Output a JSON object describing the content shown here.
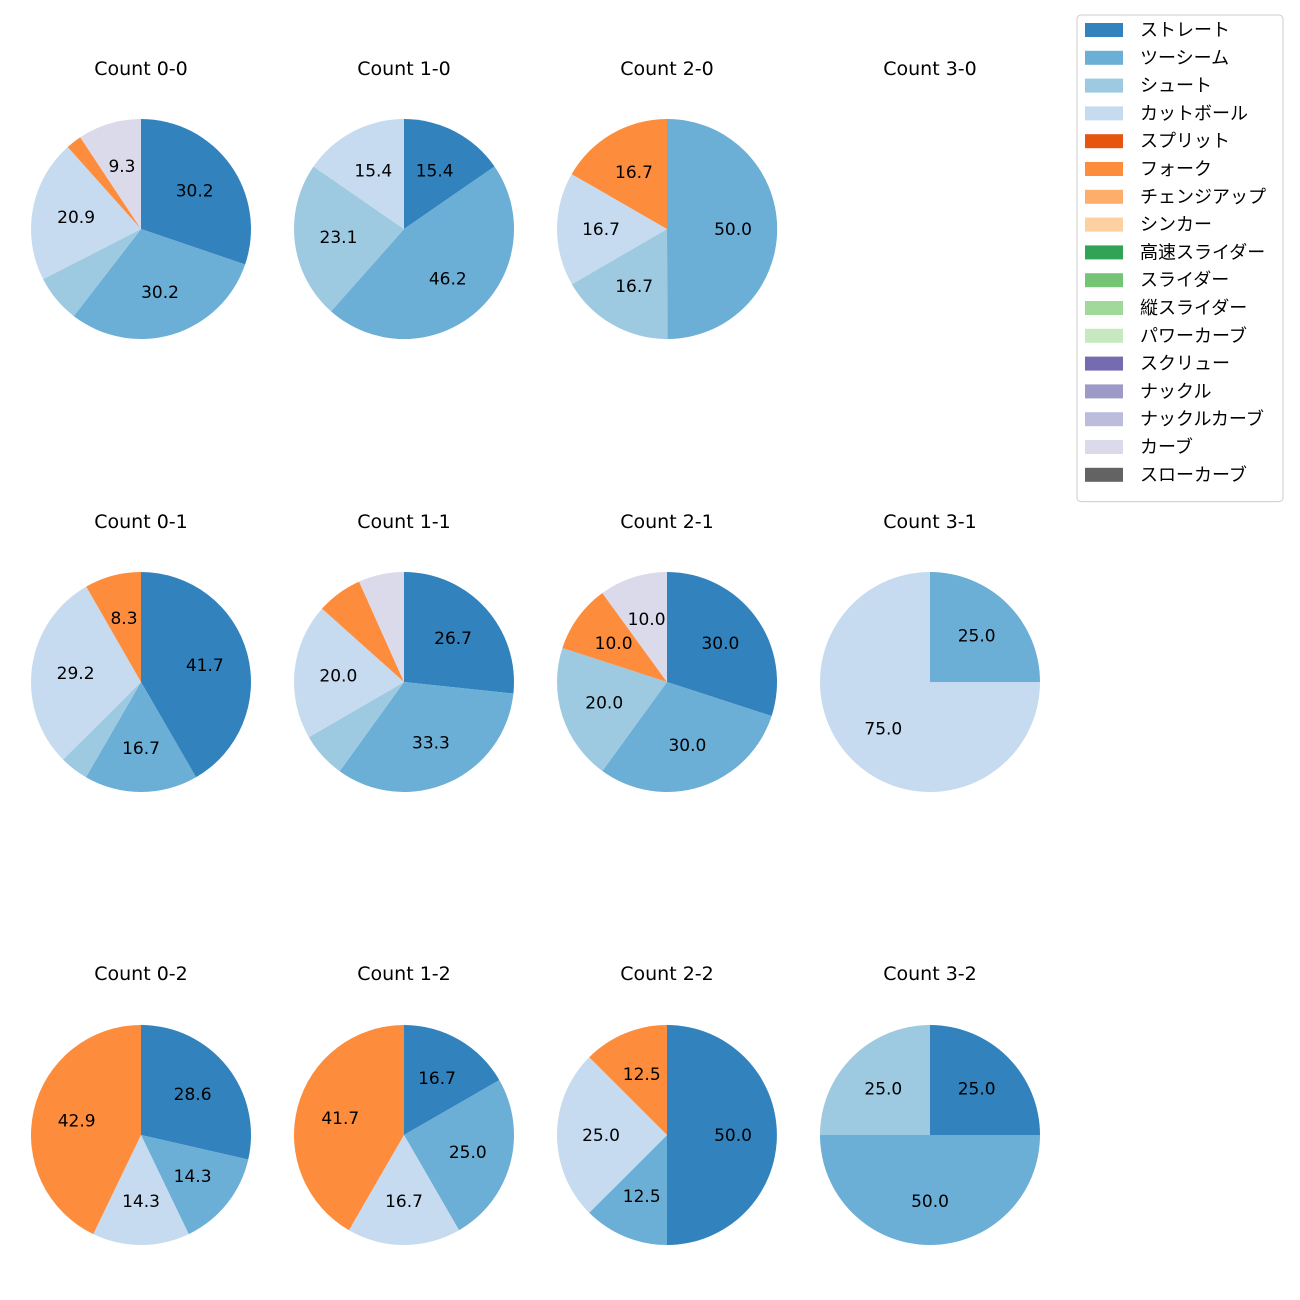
{
  "colors": {
    "ストレート": "#3182bd",
    "ツーシーム": "#6baed6",
    "シュート": "#9ecae1",
    "カットボール": "#c6dbef",
    "スプリット": "#e6550d",
    "フォーク": "#fd8d3c",
    "チェンジアップ": "#fdae6b",
    "シンカー": "#fdd0a2",
    "高速スライダー": "#31a354",
    "スライダー": "#74c476",
    "縦スライダー": "#a1d99b",
    "パワーカーブ": "#c7e9c0",
    "スクリュー": "#756bb1",
    "ナックル": "#9e9ac8",
    "ナックルカーブ": "#bcbddc",
    "カーブ": "#dadaeb",
    "スローカーブ": "#636363"
  },
  "legend": [
    "ストレート",
    "ツーシーム",
    "シュート",
    "カットボール",
    "スプリット",
    "フォーク",
    "チェンジアップ",
    "シンカー",
    "高速スライダー",
    "スライダー",
    "縦スライダー",
    "パワーカーブ",
    "スクリュー",
    "ナックル",
    "ナックルカーブ",
    "カーブ",
    "スローカーブ"
  ],
  "chart_data": [
    {
      "type": "pie",
      "title": "Count 0-0",
      "slices": [
        {
          "label": "ストレート",
          "value": 30.2
        },
        {
          "label": "ツーシーム",
          "value": 30.2
        },
        {
          "label": "シュート",
          "value": 7.0
        },
        {
          "label": "カットボール",
          "value": 20.9
        },
        {
          "label": "フォーク",
          "value": 2.3
        },
        {
          "label": "カーブ",
          "value": 9.3
        }
      ]
    },
    {
      "type": "pie",
      "title": "Count 1-0",
      "slices": [
        {
          "label": "ストレート",
          "value": 15.4
        },
        {
          "label": "ツーシーム",
          "value": 46.2
        },
        {
          "label": "シュート",
          "value": 23.1
        },
        {
          "label": "カットボール",
          "value": 15.4
        }
      ]
    },
    {
      "type": "pie",
      "title": "Count 2-0",
      "slices": [
        {
          "label": "ツーシーム",
          "value": 50.0
        },
        {
          "label": "シュート",
          "value": 16.7
        },
        {
          "label": "カットボール",
          "value": 16.7
        },
        {
          "label": "フォーク",
          "value": 16.7
        }
      ]
    },
    {
      "type": "pie",
      "title": "Count 3-0",
      "slices": []
    },
    {
      "type": "pie",
      "title": "Count 0-1",
      "slices": [
        {
          "label": "ストレート",
          "value": 41.7
        },
        {
          "label": "ツーシーム",
          "value": 16.7
        },
        {
          "label": "シュート",
          "value": 4.2
        },
        {
          "label": "カットボール",
          "value": 29.2
        },
        {
          "label": "フォーク",
          "value": 8.3
        }
      ]
    },
    {
      "type": "pie",
      "title": "Count 1-1",
      "slices": [
        {
          "label": "ストレート",
          "value": 26.7
        },
        {
          "label": "ツーシーム",
          "value": 33.3
        },
        {
          "label": "シュート",
          "value": 6.7
        },
        {
          "label": "カットボール",
          "value": 20.0
        },
        {
          "label": "フォーク",
          "value": 6.7
        },
        {
          "label": "カーブ",
          "value": 6.7
        }
      ]
    },
    {
      "type": "pie",
      "title": "Count 2-1",
      "slices": [
        {
          "label": "ストレート",
          "value": 30.0
        },
        {
          "label": "ツーシーム",
          "value": 30.0
        },
        {
          "label": "シュート",
          "value": 20.0
        },
        {
          "label": "フォーク",
          "value": 10.0
        },
        {
          "label": "カーブ",
          "value": 10.0
        }
      ]
    },
    {
      "type": "pie",
      "title": "Count 3-1",
      "slices": [
        {
          "label": "ツーシーム",
          "value": 25.0
        },
        {
          "label": "カットボール",
          "value": 75.0
        }
      ]
    },
    {
      "type": "pie",
      "title": "Count 0-2",
      "slices": [
        {
          "label": "ストレート",
          "value": 28.6
        },
        {
          "label": "ツーシーム",
          "value": 14.3
        },
        {
          "label": "カットボール",
          "value": 14.3
        },
        {
          "label": "フォーク",
          "value": 42.9
        }
      ]
    },
    {
      "type": "pie",
      "title": "Count 1-2",
      "slices": [
        {
          "label": "ストレート",
          "value": 16.7
        },
        {
          "label": "ツーシーム",
          "value": 25.0
        },
        {
          "label": "カットボール",
          "value": 16.7
        },
        {
          "label": "フォーク",
          "value": 41.7
        }
      ]
    },
    {
      "type": "pie",
      "title": "Count 2-2",
      "slices": [
        {
          "label": "ストレート",
          "value": 50.0
        },
        {
          "label": "ツーシーム",
          "value": 12.5
        },
        {
          "label": "カットボール",
          "value": 25.0
        },
        {
          "label": "フォーク",
          "value": 12.5
        }
      ]
    },
    {
      "type": "pie",
      "title": "Count 3-2",
      "slices": [
        {
          "label": "ストレート",
          "value": 25.0
        },
        {
          "label": "ツーシーム",
          "value": 50.0
        },
        {
          "label": "シュート",
          "value": 25.0
        }
      ]
    }
  ]
}
